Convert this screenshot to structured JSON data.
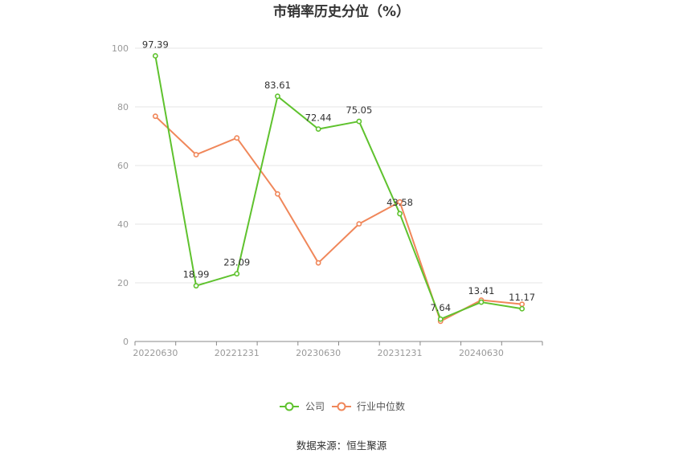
{
  "chart_data": {
    "type": "line",
    "title": "市销率历史分位（%）",
    "x": [
      "20220630",
      "20220930",
      "20221231",
      "20230331",
      "20230630",
      "20230930",
      "20231231",
      "20240331",
      "20240630",
      "20240930"
    ],
    "xticks_shown": [
      "20220630",
      "20221231",
      "20230630",
      "20231231",
      "20240630"
    ],
    "ylim": [
      0,
      100
    ],
    "yticks": [
      "0",
      "20",
      "40",
      "60",
      "80",
      "100"
    ],
    "grid": true,
    "legend_position": "bottom",
    "series": [
      {
        "name": "公司",
        "color": "#5fc22e",
        "values": [
          97.39,
          18.99,
          23.09,
          83.61,
          72.44,
          75.05,
          43.58,
          7.64,
          13.41,
          11.17
        ],
        "labels": [
          "97.39",
          "18.99",
          "23.09",
          "83.61",
          "72.44",
          "75.05",
          "43.58",
          "7.64",
          "13.41",
          "11.17"
        ]
      },
      {
        "name": "行业中位数",
        "color": "#f0875a",
        "values": [
          76.8,
          63.7,
          69.4,
          50.3,
          26.8,
          40.1,
          47.6,
          6.9,
          14.1,
          12.7
        ]
      }
    ],
    "source": "数据来源：恒生聚源"
  }
}
